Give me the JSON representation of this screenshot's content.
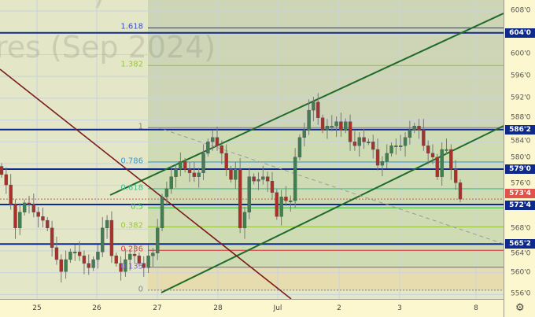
{
  "watermark": {
    "title": "res (Sep 2024)",
    "fragment": ")"
  },
  "colors": {
    "bull": "#3f7f52",
    "bear": "#a8312b",
    "level_line": "#0e2a8c",
    "channel": "#1f6b2a",
    "downtrend": "#7a1c1c",
    "current_price": "#e0524a"
  },
  "price_axis": {
    "ticks": [
      "608'0",
      "600'0",
      "596'0",
      "592'0",
      "588'0",
      "584'0",
      "580'0",
      "576'0",
      "568'0",
      "564'0",
      "560'0",
      "556'0"
    ],
    "tick_values": [
      608,
      600,
      596,
      592,
      588,
      584,
      580,
      576,
      568,
      564,
      560,
      556
    ],
    "level_labels": [
      {
        "text": "604'0",
        "value": 604.0
      },
      {
        "text": "586'2",
        "value": 586.25
      },
      {
        "text": "579'0",
        "value": 579.0
      },
      {
        "text": "572'4",
        "value": 572.5
      },
      {
        "text": "565'2",
        "value": 565.25
      }
    ],
    "current_price": {
      "text": "573'4",
      "value": 573.5
    },
    "settings_icon": "gear-icon"
  },
  "time_axis": {
    "labels": [
      "25",
      "26",
      "27",
      "28",
      "Jul",
      "2",
      "3",
      "8"
    ]
  },
  "fib_levels": [
    {
      "label": "1.618",
      "value": 604.9,
      "color": "#3a4fcf"
    },
    {
      "label": "1.382",
      "value": 598.0,
      "color": "#9cc63a"
    },
    {
      "label": "1",
      "value": 586.6,
      "color": "#888888"
    },
    {
      "label": "0.786",
      "value": 580.3,
      "color": "#3a9ad0"
    },
    {
      "label": "0.618",
      "value": 575.4,
      "color": "#3fc08c"
    },
    {
      "label": "0.5",
      "value": 571.9,
      "color": "#3cc43c"
    },
    {
      "label": "0.382",
      "value": 568.4,
      "color": "#9cc63a"
    },
    {
      "label": "0.236",
      "value": 564.1,
      "color": "#e04040"
    },
    {
      "label": "0.135",
      "value": 561.0,
      "color": "#7a6ad8"
    },
    {
      "label": "0",
      "value": 556.8,
      "color": "#888888"
    }
  ],
  "chart_data": {
    "type": "candlestick",
    "ylim": [
      555,
      610
    ],
    "x_labels": [
      "25",
      "26",
      "27",
      "28",
      "Jul",
      "2",
      "3",
      "8"
    ],
    "closes": [
      578.0,
      576.1,
      572.5,
      568.2,
      571.1,
      572.8,
      572.5,
      571.1,
      570.3,
      569.6,
      568.2,
      564.6,
      562.4,
      560.2,
      562.4,
      563.8,
      563.8,
      563.1,
      561.7,
      560.9,
      562.4,
      563.8,
      568.2,
      569.6,
      563.1,
      561.7,
      560.2,
      562.4,
      563.4,
      563.1,
      561.7,
      560.9,
      563.1,
      563.6,
      568.2,
      573.9,
      575.4,
      577.6,
      579.0,
      580.4,
      579.0,
      578.3,
      577.6,
      578.3,
      581.9,
      584.0,
      584.8,
      583.3,
      581.9,
      579.0,
      577.1,
      579.0,
      568.2,
      571.1,
      577.6,
      576.8,
      577.1,
      577.6,
      576.8,
      574.7,
      570.3,
      573.9,
      573.2,
      573.2,
      581.2,
      584.8,
      586.2,
      589.8,
      591.3,
      588.4,
      586.2,
      586.9,
      586.9,
      587.7,
      586.2,
      587.7,
      584.0,
      583.3,
      584.8,
      584.0,
      584.0,
      582.6,
      579.7,
      580.4,
      581.9,
      583.3,
      583.3,
      583.3,
      584.8,
      586.2,
      586.9,
      586.2,
      583.3,
      581.9,
      581.2,
      577.6,
      582.6,
      582.6,
      579.0,
      576.5,
      573.5
    ],
    "horizontal_levels": [
      604.0,
      586.25,
      579.0,
      572.5,
      565.25
    ]
  }
}
